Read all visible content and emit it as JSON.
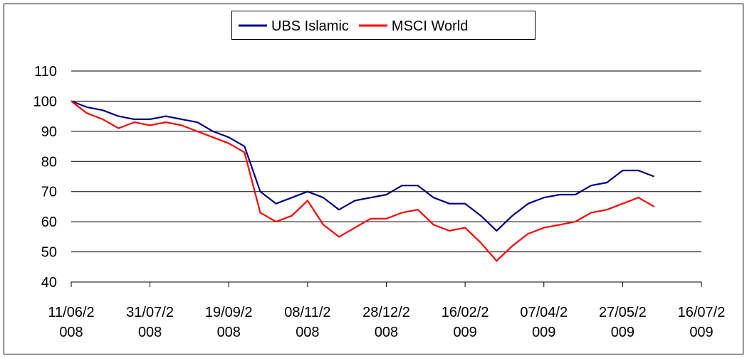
{
  "chart_data": {
    "type": "line",
    "x": [
      "2008-06-11",
      "2008-06-21",
      "2008-07-01",
      "2008-07-11",
      "2008-07-21",
      "2008-07-31",
      "2008-08-10",
      "2008-08-20",
      "2008-08-30",
      "2008-09-09",
      "2008-09-19",
      "2008-09-29",
      "2008-10-09",
      "2008-10-19",
      "2008-10-29",
      "2008-11-08",
      "2008-11-18",
      "2008-11-28",
      "2008-12-08",
      "2008-12-18",
      "2008-12-28",
      "2009-01-07",
      "2009-01-17",
      "2009-01-27",
      "2009-02-06",
      "2009-02-16",
      "2009-02-26",
      "2009-03-08",
      "2009-03-18",
      "2009-03-28",
      "2009-04-07",
      "2009-04-17",
      "2009-04-27",
      "2009-05-07",
      "2009-05-17",
      "2009-05-27",
      "2009-06-06",
      "2009-06-16"
    ],
    "series": [
      {
        "name": "UBS Islamic",
        "color": "#000080",
        "values": [
          100,
          98,
          97,
          95,
          94,
          94,
          95,
          94,
          93,
          90,
          88,
          85,
          70,
          66,
          68,
          70,
          68,
          64,
          67,
          68,
          69,
          72,
          72,
          68,
          66,
          66,
          62,
          57,
          62,
          66,
          68,
          69,
          69,
          72,
          73,
          77,
          77,
          75
        ]
      },
      {
        "name": "MSCI World",
        "color": "#ff0000",
        "values": [
          100,
          96,
          94,
          91,
          93,
          92,
          93,
          92,
          90,
          88,
          86,
          83,
          63,
          60,
          62,
          67,
          59,
          55,
          58,
          61,
          61,
          63,
          64,
          59,
          57,
          58,
          53,
          47,
          52,
          56,
          58,
          59,
          60,
          63,
          64,
          66,
          68,
          65
        ]
      }
    ],
    "xlim": [
      "2008-06-11",
      "2009-07-16"
    ],
    "xticks": [
      {
        "value": "2008-06-11",
        "label": "11/06/2008"
      },
      {
        "value": "2008-07-31",
        "label": "31/07/2008"
      },
      {
        "value": "2008-09-19",
        "label": "19/09/2008"
      },
      {
        "value": "2008-11-08",
        "label": "08/11/2008"
      },
      {
        "value": "2008-12-28",
        "label": "28/12/2008"
      },
      {
        "value": "2009-02-16",
        "label": "16/02/2009"
      },
      {
        "value": "2009-04-07",
        "label": "07/04/2009"
      },
      {
        "value": "2009-05-27",
        "label": "27/05/2009"
      },
      {
        "value": "2009-07-16",
        "label": "16/07/2009"
      }
    ],
    "ylim": [
      40,
      110
    ],
    "yticks": [
      40,
      50,
      60,
      70,
      80,
      90,
      100,
      110
    ],
    "grid": true,
    "legend": "top"
  }
}
